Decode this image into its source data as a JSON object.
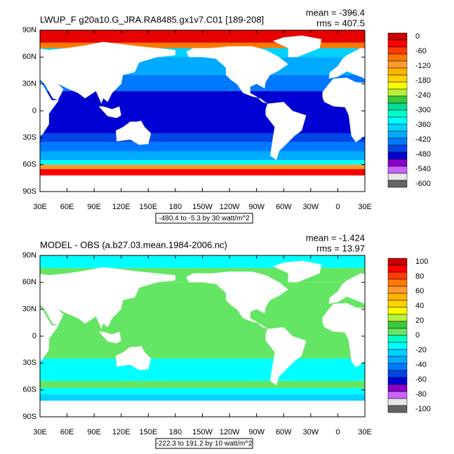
{
  "panels": [
    {
      "title": "LWUP_F g20a10.G_JRA.RA8485.gx1v7.C01 [189-208]",
      "mean": "mean = -396.4",
      "rms": "rms = 407.5",
      "lat_labels": [
        "90N",
        "60N",
        "30N",
        "0",
        "30S",
        "60S",
        "90S"
      ],
      "lon_labels": [
        "30E",
        "60E",
        "90E",
        "120E",
        "150E",
        "180",
        "150W",
        "120W",
        "90W",
        "60W",
        "30W",
        "0",
        "30E"
      ],
      "range_note": "-480.4 to -5.3 by 30 watt/m^2",
      "colorbar": {
        "labels": [
          "0",
          "-60",
          "-120",
          "-180",
          "-240",
          "-300",
          "-360",
          "-420",
          "-480",
          "-540",
          "-600"
        ],
        "colors": [
          "#c80000",
          "#ff0000",
          "#ff3a00",
          "#ff7800",
          "#ff9b2e",
          "#ffb400",
          "#ffd200",
          "#ffff00",
          "#b4f03c",
          "#3cc83c",
          "#00dc96",
          "#00ffc8",
          "#00ffff",
          "#00d2ff",
          "#00aaff",
          "#0078ff",
          "#0046e6",
          "#0000d2",
          "#8c00c8",
          "#c864ff",
          "#e6e6e6",
          "#646464"
        ]
      }
    },
    {
      "title": "MODEL - OBS (a.b27.03.mean.1984-2006.nc)",
      "mean": "mean = -1.424",
      "rms": "rms = 13.97",
      "lat_labels": [
        "90N",
        "60N",
        "30N",
        "0",
        "30S",
        "60S",
        "90S"
      ],
      "lon_labels": [
        "30E",
        "60E",
        "90E",
        "120E",
        "150E",
        "180",
        "150W",
        "120W",
        "90W",
        "60W",
        "30W",
        "0",
        "30E"
      ],
      "range_note": "-222.3 to 191.2 by 10 watt/m^2",
      "colorbar": {
        "labels": [
          "100",
          "80",
          "60",
          "40",
          "20",
          "0",
          "-20",
          "-40",
          "-60",
          "-80",
          "-100"
        ],
        "colors": [
          "#c80000",
          "#ff0000",
          "#ff3a00",
          "#ff7800",
          "#ff9b2e",
          "#ffb400",
          "#ffd200",
          "#ffff00",
          "#b4f03c",
          "#3cc83c",
          "#64e664",
          "#00ffc8",
          "#00ffff",
          "#00d2ff",
          "#00aaff",
          "#0078ff",
          "#0046e6",
          "#0000d2",
          "#8c00c8",
          "#c864ff",
          "#e6e6e6",
          "#646464"
        ]
      }
    }
  ]
}
